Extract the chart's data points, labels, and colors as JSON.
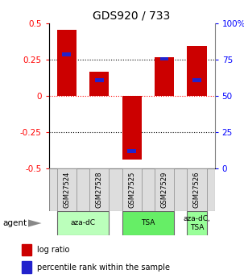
{
  "title": "GDS920 / 733",
  "samples": [
    "GSM27524",
    "GSM27528",
    "GSM27525",
    "GSM27529",
    "GSM27526"
  ],
  "log_ratios": [
    0.46,
    0.165,
    -0.44,
    0.27,
    0.345
  ],
  "pct_tops": [
    0.3,
    0.125,
    -0.37,
    0.265,
    0.12
  ],
  "pct_bottoms": [
    0.275,
    0.095,
    -0.395,
    0.245,
    0.095
  ],
  "ylim_left": [
    -0.5,
    0.5
  ],
  "yticks_left": [
    -0.5,
    -0.25,
    0.0,
    0.25,
    0.5
  ],
  "ytick_left_labels": [
    "-0.5",
    "-0.25",
    "0",
    "0.25",
    "0.5"
  ],
  "yticks_right_vals": [
    -0.5,
    -0.25,
    0.0,
    0.25,
    0.5
  ],
  "ytick_right_labels": [
    "0",
    "25",
    "50",
    "75",
    "100%"
  ],
  "hlines_dotted": [
    -0.25,
    0.25
  ],
  "hline_red": 0.0,
  "bar_color": "#cc0000",
  "pct_color": "#2222cc",
  "bar_width": 0.6,
  "groups": [
    {
      "label": "aza-dC",
      "indices": [
        0,
        1
      ],
      "color": "#bbffbb"
    },
    {
      "label": "TSA",
      "indices": [
        2,
        3
      ],
      "color": "#66ee66"
    },
    {
      "label": "aza-dC,\nTSA",
      "indices": [
        4
      ],
      "color": "#99ff99"
    }
  ],
  "legend_bar_label": "log ratio",
  "legend_pct_label": "percentile rank within the sample",
  "agent_label": "agent",
  "bg_color": "#ffffff"
}
